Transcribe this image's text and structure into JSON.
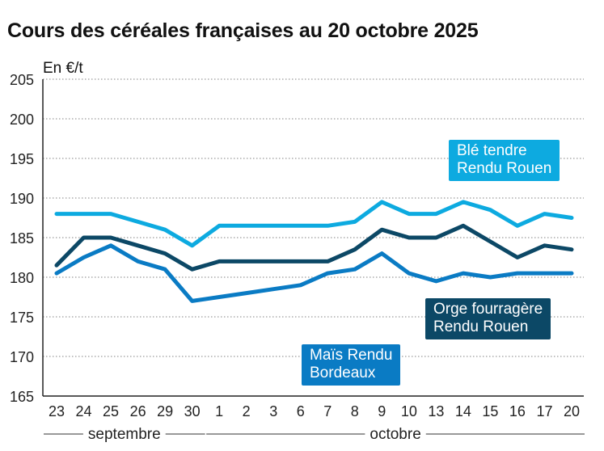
{
  "header": {
    "title": "Cours des céréales françaises au 20 octobre 2025"
  },
  "chart_data": {
    "type": "line",
    "title": "Cours des céréales françaises au 20 octobre 2025",
    "ylabel": "En €/t",
    "xlabel": "",
    "ylim": [
      165,
      205
    ],
    "yticks": [
      165,
      170,
      175,
      180,
      185,
      190,
      195,
      200,
      205
    ],
    "grid": true,
    "categories": [
      "23",
      "24",
      "25",
      "26",
      "29",
      "30",
      "1",
      "2",
      "3",
      "6",
      "7",
      "8",
      "9",
      "10",
      "13",
      "14",
      "15",
      "16",
      "17",
      "20"
    ],
    "month_groups": [
      {
        "label": "septembre",
        "from": 0,
        "to": 5
      },
      {
        "label": "octobre",
        "from": 6,
        "to": 19
      }
    ],
    "series": [
      {
        "name": "Blé tendre Rendu Rouen",
        "label_lines": [
          "Blé tendre",
          "Rendu Rouen"
        ],
        "color": "#0DAAE0",
        "values": [
          188,
          188,
          188,
          187,
          186,
          184,
          186.5,
          186.5,
          186.5,
          186.5,
          186.5,
          187,
          189.5,
          188,
          188,
          189.5,
          188.5,
          186.5,
          188,
          187.5
        ]
      },
      {
        "name": "Orge fourragère Rendu Rouen",
        "label_lines": [
          "Orge fourragère",
          "Rendu Rouen"
        ],
        "color": "#0C4866",
        "values": [
          181.5,
          185,
          185,
          184,
          183,
          181,
          182,
          182,
          182,
          182,
          182,
          183.5,
          186,
          185,
          185,
          186.5,
          184.5,
          182.5,
          184,
          183.5
        ]
      },
      {
        "name": "Maïs Rendu Bordeaux",
        "label_lines": [
          "Maïs Rendu",
          "Bordeaux"
        ],
        "color": "#0A7BC4",
        "values": [
          180.5,
          182.5,
          184,
          182,
          181,
          177,
          177.5,
          178,
          178.5,
          179,
          180.5,
          181,
          183,
          180.5,
          179.5,
          180.5,
          180,
          180.5,
          180.5,
          180.5
        ]
      }
    ]
  }
}
